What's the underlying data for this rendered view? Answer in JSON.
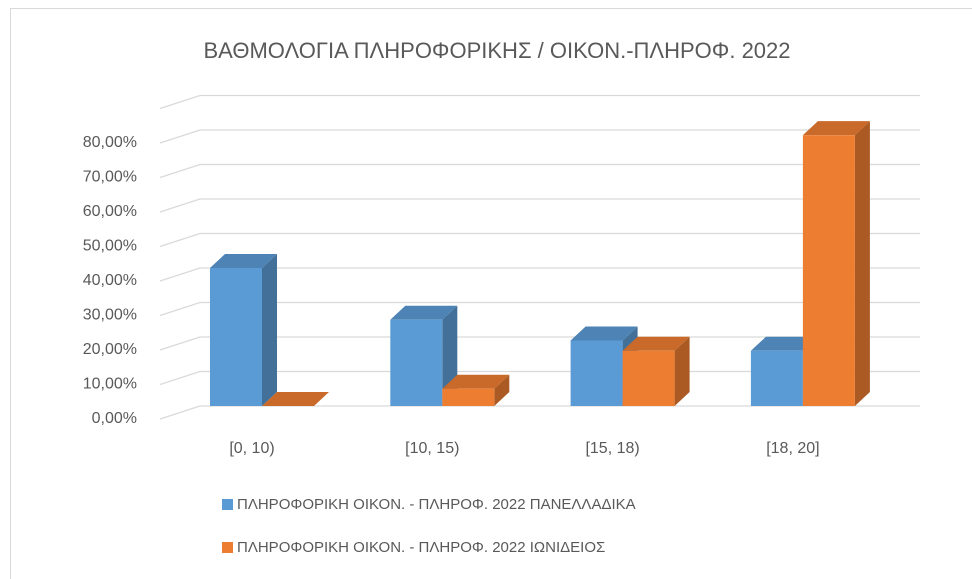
{
  "chart_data": {
    "type": "bar3d",
    "title": "ΒΑΘΜΟΛΟΓΙΑ ΠΛΗΡΟΦΟΡΙΚΗΣ / ΟΙΚΟΝ.-ΠΛΗΡΟΦ. 2022",
    "categories": [
      "[0, 10)",
      "[10, 15)",
      "[15, 18)",
      "[18, 20]"
    ],
    "series": [
      {
        "name": "ΠΛΗΡΟΦΟΡΙΚΗ ΟΙΚΟΝ. - ΠΛΗΡΟΦ. 2022 ΠΑΝΕΛΛΑΔΙΚΑ",
        "color": "#5b9bd5",
        "values": [
          40,
          25,
          19,
          16
        ]
      },
      {
        "name": "ΠΛΗΡΟΦΟΡΙΚΗ ΟΙΚΟΝ. - ΠΛΗΡΟΦ. 2022 ΙΩΝΙΔΕΙΟΣ",
        "color": "#ed7d31",
        "values": [
          0,
          5,
          16,
          78.5
        ]
      }
    ],
    "ylim": [
      0,
      90
    ],
    "yticks": [
      {
        "value": 0,
        "label": "0,00%"
      },
      {
        "value": 10,
        "label": "10,00%"
      },
      {
        "value": 20,
        "label": "20,00%"
      },
      {
        "value": 30,
        "label": "30,00%"
      },
      {
        "value": 40,
        "label": "40,00%"
      },
      {
        "value": 50,
        "label": "50,00%"
      },
      {
        "value": 60,
        "label": "60,00%"
      },
      {
        "value": 70,
        "label": "70,00%"
      },
      {
        "value": 80,
        "label": "80,00%"
      }
    ],
    "grid": true,
    "legend": "bottom"
  }
}
